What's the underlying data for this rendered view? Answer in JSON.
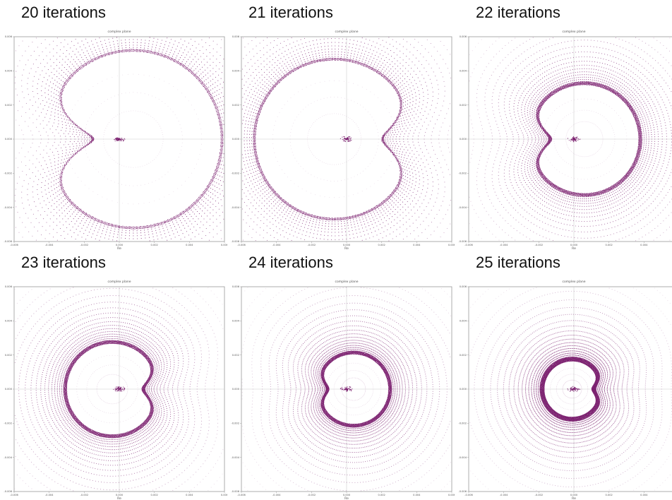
{
  "chart_data": [
    {
      "heading": "20 iterations",
      "type": "scatter",
      "title": "complex plane",
      "xlabel": "Re",
      "ylabel": "",
      "xlim": [
        -0.006,
        0.006
      ],
      "ylim": [
        -0.006,
        0.006
      ],
      "xticks": [
        "-0.006",
        "-0.004",
        "-0.002",
        "0.000",
        "0.002",
        "0.004",
        "0.006"
      ],
      "yticks": [
        "-0.006",
        "-0.004",
        "-0.002",
        "0.000",
        "0.002",
        "0.004",
        "0.006"
      ],
      "boundary": {
        "center_re": 0.0008,
        "radius": 0.005,
        "cusp_re": -0.0022,
        "cusp_depth": 0.55
      },
      "center_cluster": {
        "re": 0.0,
        "im": 0.0
      },
      "point_density": 0.35,
      "grid": true,
      "marker_color": "#7a1f6e"
    },
    {
      "heading": "21 iterations",
      "type": "scatter",
      "title": "complex plane",
      "xlabel": "Re",
      "ylabel": "",
      "xlim": [
        -0.006,
        0.006
      ],
      "ylim": [
        -0.006,
        0.006
      ],
      "xticks": [
        "-0.006",
        "-0.004",
        "-0.002",
        "0.000",
        "0.002",
        "0.004",
        "0.006"
      ],
      "yticks": [
        "-0.006",
        "-0.004",
        "-0.002",
        "0.000",
        "0.002",
        "0.004",
        "0.006"
      ],
      "boundary": {
        "center_re": -0.0007,
        "radius": 0.0045,
        "cusp_re": 0.0021,
        "cusp_depth": 0.4
      },
      "center_cluster": {
        "re": 0.0,
        "im": 0.0
      },
      "point_density": 0.45,
      "grid": true,
      "marker_color": "#7a1f6e"
    },
    {
      "heading": "22 iterations",
      "type": "scatter",
      "title": "complex plane",
      "xlabel": "Re",
      "ylabel": "",
      "xlim": [
        -0.006,
        0.006
      ],
      "ylim": [
        -0.006,
        0.006
      ],
      "xticks": [
        "-0.006",
        "-0.004",
        "-0.002",
        "0.000",
        "0.002",
        "0.004",
        "0.006"
      ],
      "yticks": [
        "-0.006",
        "-0.004",
        "-0.002",
        "0.000",
        "0.002",
        "0.004",
        "0.006"
      ],
      "boundary": {
        "center_re": 0.0006,
        "radius": 0.0031,
        "cusp_re": -0.0017,
        "cusp_depth": 0.4
      },
      "center_cluster": {
        "re": 0.0,
        "im": 0.0
      },
      "point_density": 0.6,
      "grid": true,
      "marker_color": "#7a1f6e"
    },
    {
      "heading": "23 iterations",
      "type": "scatter",
      "title": "complex plane",
      "xlabel": "Re",
      "ylabel": "",
      "xlim": [
        -0.006,
        0.006
      ],
      "ylim": [
        -0.006,
        0.006
      ],
      "xticks": [
        "-0.006",
        "-0.004",
        "-0.002",
        "0.000",
        "0.002",
        "0.004",
        "0.006"
      ],
      "yticks": [
        "-0.006",
        "-0.004",
        "-0.002",
        "0.000",
        "0.002",
        "0.004",
        "0.006"
      ],
      "boundary": {
        "center_re": -0.0004,
        "radius": 0.0026,
        "cusp_re": 0.0013,
        "cusp_depth": 0.35
      },
      "center_cluster": {
        "re": 0.0,
        "im": 0.0
      },
      "point_density": 0.7,
      "grid": true,
      "marker_color": "#7a1f6e"
    },
    {
      "heading": "24 iterations",
      "type": "scatter",
      "title": "complex plane",
      "xlabel": "Re",
      "ylabel": "",
      "xlim": [
        -0.006,
        0.006
      ],
      "ylim": [
        -0.006,
        0.006
      ],
      "xticks": [
        "-0.006",
        "-0.004",
        "-0.002",
        "0.000",
        "0.002",
        "0.004",
        "0.006"
      ],
      "yticks": [
        "-0.006",
        "-0.004",
        "-0.002",
        "0.000",
        "0.002",
        "0.004",
        "0.006"
      ],
      "boundary": {
        "center_re": 0.0004,
        "radius": 0.002,
        "cusp_re": -0.0011,
        "cusp_depth": 0.3
      },
      "center_cluster": {
        "re": 0.0,
        "im": 0.0
      },
      "point_density": 0.8,
      "grid": true,
      "marker_color": "#7a1f6e"
    },
    {
      "heading": "25 iterations",
      "type": "scatter",
      "title": "complex plane",
      "xlabel": "Re",
      "ylabel": "",
      "xlim": [
        -0.006,
        0.006
      ],
      "ylim": [
        -0.006,
        0.006
      ],
      "xticks": [
        "-0.006",
        "-0.004",
        "-0.002",
        "0.000",
        "0.002",
        "0.004",
        "0.006"
      ],
      "yticks": [
        "-0.006",
        "-0.004",
        "-0.002",
        "0.000",
        "0.002",
        "0.004",
        "0.006"
      ],
      "boundary": {
        "center_re": -0.0001,
        "radius": 0.0016,
        "cusp_re": 0.0011,
        "cusp_depth": 0.3
      },
      "center_cluster": {
        "re": 0.0,
        "im": 0.0
      },
      "point_density": 0.9,
      "grid": true,
      "marker_color": "#7a1f6e"
    }
  ]
}
